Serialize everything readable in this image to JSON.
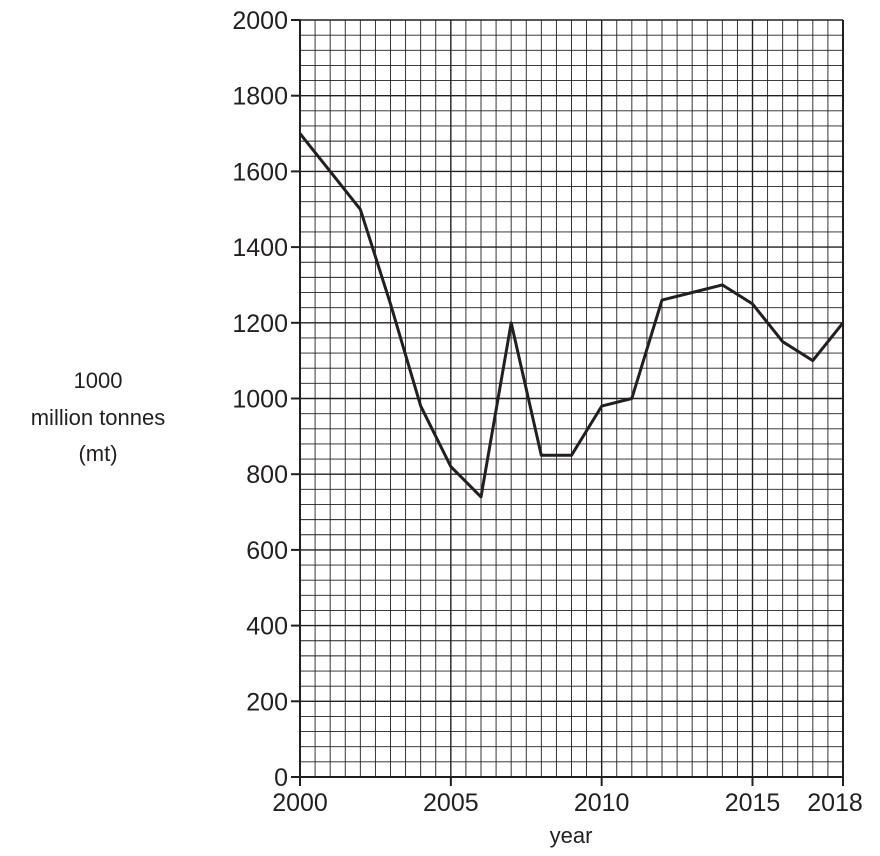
{
  "chart_data": {
    "type": "line",
    "xlabel": "year",
    "ylabel_lines": [
      "1000",
      "million tonnes",
      "(mt)"
    ],
    "x_ticks": [
      "2000",
      "2005",
      "2010",
      "2015",
      "2018"
    ],
    "y_ticks": [
      "0",
      "200",
      "400",
      "600",
      "800",
      "1000",
      "1200",
      "1400",
      "1600",
      "1800",
      "2000"
    ],
    "xlim": [
      2000,
      2018
    ],
    "ylim": [
      0,
      2000
    ],
    "grid": true,
    "x_minor_step": 0.5,
    "y_minor_step": 40,
    "x_major_step": 5,
    "y_major_step": 200,
    "series": [
      {
        "x": [
          2000,
          2001,
          2002,
          2003,
          2004,
          2005,
          2006,
          2007,
          2008,
          2009,
          2010,
          2011,
          2012,
          2013,
          2014,
          2015,
          2016,
          2017,
          2018
        ],
        "y": [
          1700,
          1600,
          1500,
          1250,
          980,
          820,
          740,
          1200,
          850,
          850,
          980,
          1000,
          1260,
          1280,
          1300,
          1250,
          1150,
          1100,
          1200
        ]
      }
    ]
  }
}
